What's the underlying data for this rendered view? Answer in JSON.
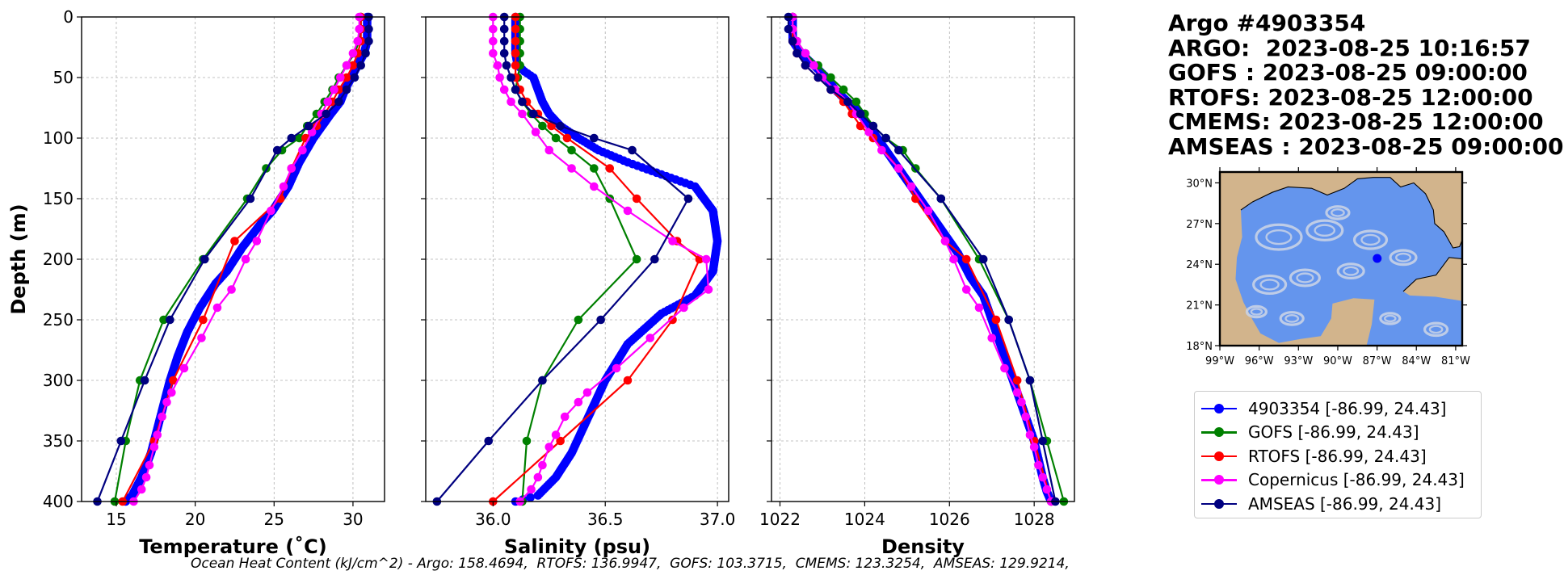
{
  "colors": {
    "argo": "#0000ff",
    "gofs": "#008000",
    "rtofs": "#ff0000",
    "copernicus": "#ff00ff",
    "amseas": "#000080",
    "land": "#d2b48c",
    "ocean": "#6495ed",
    "streamlines": "#c8d2e6"
  },
  "title_lines": [
    "Argo #4903354",
    "ARGO:  2023-08-25 10:16:57",
    "GOFS : 2023-08-25 09:00:00",
    "RTOFS: 2023-08-25 12:00:00",
    "CMEMS: 2023-08-25 12:00:00",
    "AMSEAS : 2023-08-25 09:00:00"
  ],
  "legend": [
    {
      "label": "4903354 [-86.99, 24.43]",
      "color_key": "argo"
    },
    {
      "label": "GOFS [-86.99, 24.43]",
      "color_key": "gofs"
    },
    {
      "label": "RTOFS [-86.99, 24.43]",
      "color_key": "rtofs"
    },
    {
      "label": "Copernicus [-86.99, 24.43]",
      "color_key": "copernicus"
    },
    {
      "label": "AMSEAS [-86.99, 24.43]",
      "color_key": "amseas"
    }
  ],
  "footer": "Ocean Heat Content (kJ/cm^2) - Argo: 158.4694,  RTOFS: 136.9947,  GOFS: 103.3715,  CMEMS: 123.3254,  AMSEAS: 129.9214,",
  "map": {
    "lat_ticks": [
      "30°N",
      "27°N",
      "24°N",
      "21°N",
      "18°N"
    ],
    "lat_values": [
      30,
      27,
      24,
      21,
      18
    ],
    "lon_ticks": [
      "99°W",
      "96°W",
      "93°W",
      "90°W",
      "87°W",
      "84°W",
      "81°W"
    ],
    "lon_values": [
      -99,
      -96,
      -93,
      -90,
      -87,
      -84,
      -81
    ],
    "xlim": [
      -99,
      -80.5
    ],
    "ylim": [
      18,
      30.8
    ],
    "marker": {
      "lon": -86.99,
      "lat": 24.43
    }
  },
  "chart_data": [
    {
      "type": "line",
      "xlabel": "Temperature (˚C)",
      "ylabel": "Depth (m)",
      "xlim": [
        12.8,
        32
      ],
      "ylim": [
        400,
        0
      ],
      "xticks": [
        15,
        20,
        25,
        30
      ],
      "yticks": [
        0,
        50,
        100,
        150,
        200,
        250,
        300,
        350,
        400
      ],
      "grid": true,
      "series": [
        {
          "name": "4903354",
          "color_key": "argo",
          "dense": true,
          "x": [
            30.9,
            30.9,
            30.7,
            30.3,
            29.9,
            29.5,
            29.2,
            28.6,
            27.5,
            26.6,
            25.9,
            25.4,
            24.9,
            24.2,
            23.6,
            23.0,
            22.0,
            21.3,
            20.3,
            19.5,
            18.9,
            18.4,
            18.0,
            17.6,
            17.2,
            16.6,
            16.0,
            15.6
          ],
          "y": [
            0,
            20,
            30,
            40,
            50,
            60,
            70,
            80,
            100,
            120,
            140,
            150,
            160,
            170,
            180,
            190,
            210,
            220,
            240,
            260,
            280,
            300,
            320,
            340,
            360,
            380,
            395,
            400
          ]
        },
        {
          "name": "GOFS",
          "color_key": "gofs",
          "x": [
            30.5,
            30.5,
            30.4,
            30.1,
            29.6,
            29.1,
            28.7,
            28.2,
            27.7,
            27.1,
            26.6,
            25.5,
            24.5,
            23.3,
            20.5,
            18.0,
            16.5,
            15.6,
            14.9
          ],
          "y": [
            0,
            10,
            20,
            30,
            40,
            50,
            60,
            70,
            80,
            90,
            100,
            110,
            125,
            150,
            200,
            250,
            300,
            350,
            400
          ]
        },
        {
          "name": "RTOFS",
          "color_key": "rtofs",
          "x": [
            30.5,
            30.5,
            30.5,
            30.3,
            30.0,
            29.6,
            29.1,
            28.7,
            28.2,
            27.7,
            27.0,
            26.1,
            25.4,
            22.5,
            20.5,
            18.6,
            17.4,
            15.4
          ],
          "y": [
            0,
            10,
            20,
            30,
            40,
            50,
            60,
            70,
            80,
            90,
            100,
            125,
            150,
            185,
            250,
            300,
            350,
            400
          ]
        },
        {
          "name": "Copernicus",
          "color_key": "copernicus",
          "x": [
            30.4,
            30.4,
            30.3,
            30.0,
            29.6,
            29.2,
            28.8,
            28.4,
            28.0,
            27.4,
            26.8,
            26.1,
            25.6,
            24.8,
            23.9,
            23.2,
            22.3,
            21.4,
            20.4,
            19.3,
            18.5,
            18.2,
            17.9,
            17.6,
            17.4,
            17.1,
            16.9,
            16.6,
            16.1
          ],
          "y": [
            0,
            10,
            20,
            30,
            40,
            50,
            60,
            70,
            80,
            95,
            110,
            125,
            140,
            160,
            185,
            200,
            225,
            240,
            265,
            290,
            310,
            318,
            330,
            345,
            355,
            370,
            380,
            390,
            400
          ]
        },
        {
          "name": "AMSEAS",
          "color_key": "amseas",
          "x": [
            31.0,
            31.0,
            31.0,
            30.8,
            30.5,
            30.1,
            29.6,
            29.1,
            28.3,
            27.2,
            26.1,
            25.2,
            23.5,
            20.6,
            18.4,
            16.8,
            15.3,
            13.8
          ],
          "y": [
            0,
            10,
            20,
            30,
            40,
            50,
            60,
            70,
            80,
            90,
            100,
            110,
            150,
            200,
            250,
            300,
            350,
            400
          ]
        }
      ]
    },
    {
      "type": "line",
      "xlabel": "Salinity (psu)",
      "xlim": [
        35.7,
        37.05
      ],
      "ylim": [
        400,
        0
      ],
      "xticks": [
        36.0,
        36.5,
        37.0
      ],
      "xtick_labels": [
        "36.0",
        "36.5",
        "37.0"
      ],
      "yticks": [
        0,
        50,
        100,
        150,
        200,
        250,
        300,
        350,
        400
      ],
      "grid": true,
      "series": [
        {
          "name": "4903354",
          "color_key": "argo",
          "dense": true,
          "x": [
            36.1,
            36.1,
            36.1,
            36.11,
            36.14,
            36.18,
            36.2,
            36.22,
            36.25,
            36.3,
            36.38,
            36.47,
            36.6,
            36.75,
            36.9,
            36.98,
            37.0,
            36.98,
            36.9,
            36.75,
            36.6,
            36.5,
            36.45,
            36.4,
            36.35,
            36.28,
            36.2,
            36.1
          ],
          "y": [
            0,
            20,
            30,
            40,
            45,
            50,
            60,
            70,
            80,
            90,
            100,
            110,
            120,
            130,
            140,
            160,
            185,
            210,
            230,
            245,
            270,
            300,
            320,
            340,
            360,
            380,
            395,
            400
          ]
        },
        {
          "name": "GOFS",
          "color_key": "gofs",
          "x": [
            36.12,
            36.12,
            36.12,
            36.12,
            36.12,
            36.11,
            36.1,
            36.13,
            36.17,
            36.22,
            36.28,
            36.35,
            36.45,
            36.52,
            36.64,
            36.38,
            36.22,
            36.15,
            36.13
          ],
          "y": [
            0,
            10,
            20,
            30,
            40,
            50,
            60,
            70,
            80,
            90,
            100,
            110,
            125,
            150,
            200,
            250,
            300,
            350,
            400
          ]
        },
        {
          "name": "RTOFS",
          "color_key": "rtofs",
          "x": [
            36.1,
            36.1,
            36.1,
            36.1,
            36.1,
            36.1,
            36.12,
            36.15,
            36.2,
            36.26,
            36.33,
            36.52,
            36.64,
            36.82,
            36.92,
            36.8,
            36.6,
            36.3,
            36.0
          ],
          "y": [
            0,
            10,
            20,
            30,
            40,
            50,
            60,
            70,
            80,
            90,
            100,
            125,
            150,
            185,
            200,
            250,
            300,
            350,
            400
          ]
        },
        {
          "name": "Copernicus",
          "color_key": "copernicus",
          "x": [
            36.0,
            36.0,
            36.0,
            36.0,
            36.02,
            36.03,
            36.05,
            36.08,
            36.13,
            36.19,
            36.25,
            36.35,
            36.45,
            36.6,
            36.8,
            36.95,
            36.96,
            36.85,
            36.7,
            36.55,
            36.42,
            36.38,
            36.32,
            36.28,
            36.25,
            36.22,
            36.2,
            36.17,
            36.12
          ],
          "y": [
            0,
            10,
            20,
            30,
            40,
            50,
            60,
            70,
            80,
            95,
            110,
            125,
            140,
            160,
            185,
            200,
            225,
            240,
            265,
            290,
            310,
            318,
            330,
            345,
            355,
            370,
            380,
            390,
            400
          ]
        },
        {
          "name": "AMSEAS",
          "color_key": "amseas",
          "x": [
            36.05,
            36.05,
            36.05,
            36.05,
            36.06,
            36.08,
            36.1,
            36.13,
            36.18,
            36.3,
            36.45,
            36.62,
            36.87,
            36.72,
            36.48,
            36.22,
            35.98,
            35.75
          ],
          "y": [
            0,
            10,
            20,
            30,
            40,
            50,
            60,
            70,
            80,
            90,
            100,
            110,
            150,
            200,
            250,
            300,
            350,
            400
          ]
        }
      ]
    },
    {
      "type": "line",
      "xlabel": "Density",
      "xlim": [
        1021.8,
        1028.95
      ],
      "ylim": [
        400,
        0
      ],
      "xticks": [
        1022,
        1024,
        1026,
        1028
      ],
      "yticks": [
        0,
        50,
        100,
        150,
        200,
        250,
        300,
        350,
        400
      ],
      "grid": true,
      "series": [
        {
          "name": "4903354",
          "color_key": "argo",
          "dense": true,
          "x": [
            1022.3,
            1022.3,
            1022.5,
            1022.8,
            1023.1,
            1023.3,
            1023.6,
            1023.9,
            1024.2,
            1024.5,
            1024.8,
            1025.0,
            1025.3,
            1025.6,
            1025.9,
            1026.2,
            1026.5,
            1026.8,
            1027.0,
            1027.2,
            1027.4,
            1027.6,
            1027.8,
            1028.0,
            1028.1,
            1028.2,
            1028.3,
            1028.4
          ],
          "y": [
            0,
            20,
            30,
            40,
            50,
            60,
            70,
            80,
            95,
            110,
            125,
            135,
            150,
            165,
            180,
            195,
            215,
            230,
            250,
            270,
            290,
            310,
            330,
            350,
            365,
            380,
            392,
            400
          ]
        },
        {
          "name": "GOFS",
          "color_key": "gofs",
          "x": [
            1022.3,
            1022.3,
            1022.4,
            1022.6,
            1022.9,
            1023.2,
            1023.5,
            1023.8,
            1024.0,
            1024.2,
            1024.5,
            1024.9,
            1025.2,
            1025.8,
            1026.7,
            1027.4,
            1027.9,
            1028.3,
            1028.7
          ],
          "y": [
            0,
            10,
            20,
            30,
            40,
            50,
            60,
            70,
            80,
            90,
            100,
            110,
            125,
            150,
            200,
            250,
            300,
            350,
            400
          ]
        },
        {
          "name": "RTOFS",
          "color_key": "rtofs",
          "x": [
            1022.3,
            1022.3,
            1022.3,
            1022.4,
            1022.6,
            1022.9,
            1023.2,
            1023.5,
            1023.7,
            1023.9,
            1024.2,
            1024.8,
            1025.2,
            1025.9,
            1026.4,
            1027.1,
            1027.6,
            1028.0,
            1028.4
          ],
          "y": [
            0,
            10,
            20,
            30,
            40,
            50,
            60,
            70,
            80,
            90,
            100,
            125,
            150,
            185,
            200,
            250,
            300,
            350,
            400
          ]
        },
        {
          "name": "Copernicus",
          "color_key": "copernicus",
          "x": [
            1022.3,
            1022.3,
            1022.4,
            1022.6,
            1022.8,
            1023.0,
            1023.3,
            1023.6,
            1023.8,
            1024.1,
            1024.4,
            1024.8,
            1025.1,
            1025.5,
            1025.9,
            1026.1,
            1026.4,
            1026.7,
            1027.0,
            1027.3,
            1027.6,
            1027.7,
            1027.8,
            1027.9,
            1028.0,
            1028.1,
            1028.2,
            1028.3,
            1028.4
          ],
          "y": [
            0,
            10,
            20,
            30,
            40,
            50,
            60,
            70,
            80,
            95,
            110,
            125,
            140,
            160,
            185,
            200,
            225,
            240,
            265,
            290,
            310,
            318,
            330,
            345,
            355,
            370,
            380,
            390,
            400
          ]
        },
        {
          "name": "AMSEAS",
          "color_key": "amseas",
          "x": [
            1022.2,
            1022.2,
            1022.3,
            1022.4,
            1022.6,
            1022.9,
            1023.2,
            1023.6,
            1023.9,
            1024.2,
            1024.5,
            1024.8,
            1025.8,
            1026.8,
            1027.4,
            1027.9,
            1028.2,
            1028.5
          ],
          "y": [
            0,
            10,
            20,
            30,
            40,
            50,
            60,
            70,
            80,
            90,
            100,
            110,
            150,
            200,
            250,
            300,
            350,
            400
          ]
        }
      ]
    }
  ]
}
